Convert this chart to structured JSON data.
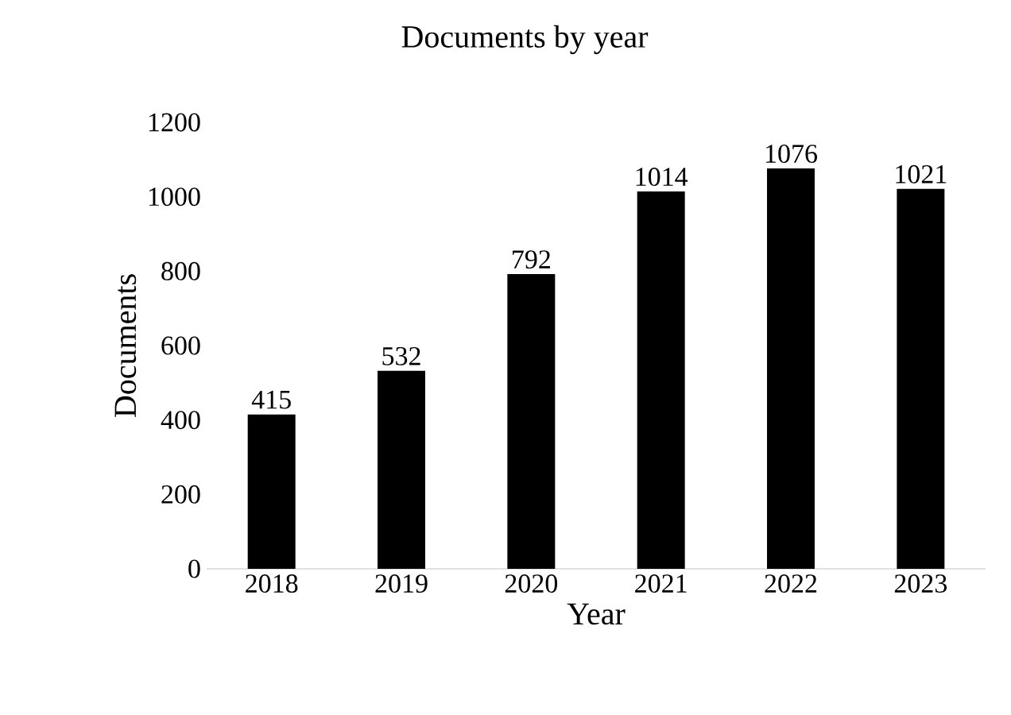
{
  "chart_data": {
    "type": "bar",
    "title": "Documents by year",
    "xlabel": "Year",
    "ylabel": "Documents",
    "categories": [
      "2018",
      "2019",
      "2020",
      "2021",
      "2022",
      "2023"
    ],
    "values": [
      415,
      532,
      792,
      1014,
      1076,
      1021
    ],
    "color": "#000000",
    "ylim": [
      0,
      1200
    ],
    "yticks": [
      0,
      200,
      400,
      600,
      800,
      1000,
      1200
    ],
    "data_labels": true,
    "grid": false
  }
}
